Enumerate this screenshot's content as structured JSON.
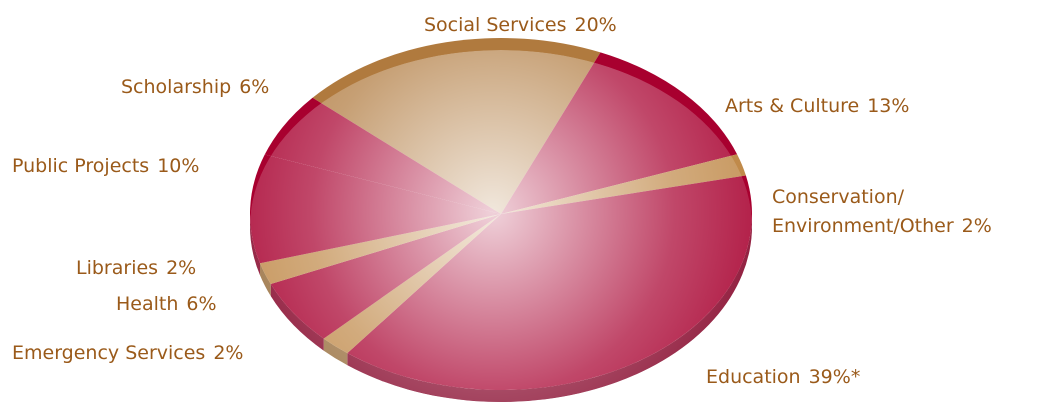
{
  "chart_data": {
    "type": "pie",
    "title": "",
    "colors": {
      "primary": "#a8002f",
      "accent": "#c08a4a",
      "label": "#9a5a1a"
    },
    "slices": [
      {
        "id": "social-services",
        "label": "Social Services",
        "value": 20,
        "display": "20%",
        "color": "#b07a3e"
      },
      {
        "id": "arts-culture",
        "label": "Arts & Culture",
        "value": 13,
        "display": "13%",
        "color": "#a8002f"
      },
      {
        "id": "conservation",
        "label": "Conservation/",
        "label2": "Environment/Other",
        "value": 2,
        "display": "2%",
        "color": "#c08a4a"
      },
      {
        "id": "education",
        "label": "Education",
        "value": 39,
        "display": "39%*",
        "color": "#a8002f"
      },
      {
        "id": "emergency-services",
        "label": "Emergency Services",
        "value": 2,
        "display": "2%",
        "color": "#c08a4a"
      },
      {
        "id": "health",
        "label": "Health",
        "value": 6,
        "display": "6%",
        "color": "#a8002f"
      },
      {
        "id": "libraries",
        "label": "Libraries",
        "value": 2,
        "display": "2%",
        "color": "#c08a4a"
      },
      {
        "id": "public-projects",
        "label": "Public Projects",
        "value": 10,
        "display": "10%",
        "color": "#a8002f"
      },
      {
        "id": "scholarship",
        "label": "Scholarship",
        "value": 6,
        "display": "6%",
        "color": "#a8002f"
      }
    ]
  }
}
